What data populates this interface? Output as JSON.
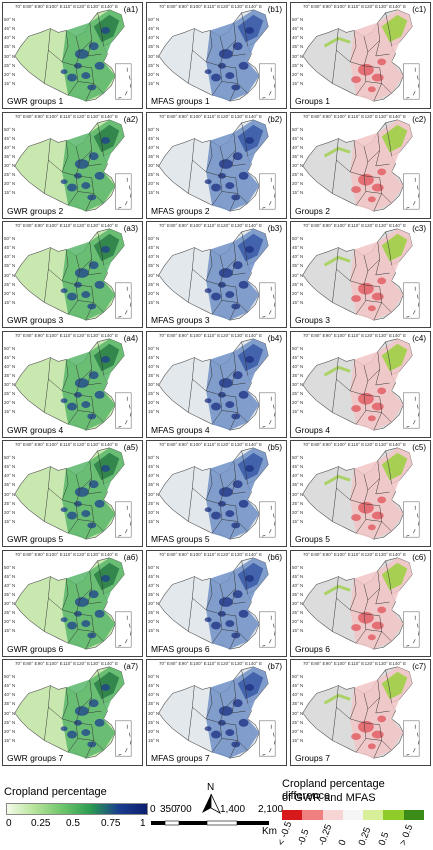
{
  "panels": [
    {
      "id": "(a1)",
      "label": "GWR groups 1",
      "kind": "crop"
    },
    {
      "id": "(b1)",
      "label": "MFAS groups 1",
      "kind": "crop"
    },
    {
      "id": "(c1)",
      "label": "Groups 1",
      "kind": "diff"
    },
    {
      "id": "(a2)",
      "label": "GWR groups 2",
      "kind": "crop"
    },
    {
      "id": "(b2)",
      "label": "MFAS groups 2",
      "kind": "crop"
    },
    {
      "id": "(c2)",
      "label": "Groups 2",
      "kind": "diff"
    },
    {
      "id": "(a3)",
      "label": "GWR groups 3",
      "kind": "crop"
    },
    {
      "id": "(b3)",
      "label": "MFAS groups 3",
      "kind": "crop"
    },
    {
      "id": "(c3)",
      "label": "Groups 3",
      "kind": "diff"
    },
    {
      "id": "(a4)",
      "label": "GWR groups 4",
      "kind": "crop"
    },
    {
      "id": "(b4)",
      "label": "MFAS groups 4",
      "kind": "crop"
    },
    {
      "id": "(c4)",
      "label": "Groups 4",
      "kind": "diff"
    },
    {
      "id": "(a5)",
      "label": "GWR groups 5",
      "kind": "crop"
    },
    {
      "id": "(b5)",
      "label": "MFAS groups 5",
      "kind": "crop"
    },
    {
      "id": "(c5)",
      "label": "Groups 5",
      "kind": "diff"
    },
    {
      "id": "(a6)",
      "label": "GWR groups 6",
      "kind": "crop"
    },
    {
      "id": "(b6)",
      "label": "MFAS groups 6",
      "kind": "crop"
    },
    {
      "id": "(c6)",
      "label": "Groups 6",
      "kind": "diff"
    },
    {
      "id": "(a7)",
      "label": "GWR groups 7",
      "kind": "crop"
    },
    {
      "id": "(b7)",
      "label": "MFAS groups 7",
      "kind": "crop"
    },
    {
      "id": "(c7)",
      "label": "Groups 7",
      "kind": "diff"
    }
  ],
  "graticule": {
    "lon": [
      "70° E",
      "80° E",
      "90° E",
      "100° E",
      "110° E",
      "120° E",
      "130° E",
      "140° E"
    ],
    "lat": [
      "50° N",
      "45° N",
      "40° N",
      "35° N",
      "30° N",
      "25° N",
      "20° N",
      "15° N"
    ]
  },
  "legend_crop": {
    "title": "Cropland percentage",
    "ticks": [
      "0",
      "0.25",
      "0.5",
      "0.75",
      "1"
    ],
    "colors": [
      "#f3fbe8",
      "#b6e39a",
      "#6cc56a",
      "#2a9a52",
      "#1b3c8f",
      "#0d1f70"
    ]
  },
  "legend_diff": {
    "title_line1": "Cropland percentage difference",
    "title_line2": "of GWR and MFAS",
    "ticks": [
      "< -0.5",
      "-0.5",
      "-0.25",
      "0",
      "0.25",
      "0.5",
      "> 0.5"
    ],
    "colors": [
      "#d7191c",
      "#f08080",
      "#f8d5d5",
      "#f5f5f5",
      "#d8ef9a",
      "#8fcc2a",
      "#3c8c1a"
    ]
  },
  "scale": {
    "north": "N",
    "labels": [
      "0",
      "350",
      "700",
      "1,400",
      "2,100"
    ],
    "unit": "Km"
  }
}
